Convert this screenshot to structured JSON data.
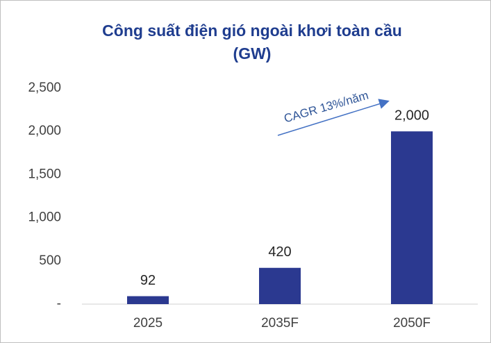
{
  "chart_data": {
    "type": "bar",
    "title": [
      "Công suất điện gió ngoài khơi toàn cầu",
      "(GW)"
    ],
    "categories": [
      "2025",
      "2035F",
      "2050F"
    ],
    "values": [
      92,
      420,
      2000
    ],
    "value_labels": [
      "92",
      "420",
      "2,000"
    ],
    "color": "#2b3990",
    "ylim": [
      0,
      2500
    ],
    "yticks": [
      {
        "value": 0,
        "label": "-"
      },
      500,
      {
        "value": 1000,
        "label": "1,000"
      },
      {
        "value": 1500,
        "label": "1,500"
      },
      {
        "value": 2000,
        "label": "2,000"
      },
      {
        "value": 2500,
        "label": "2,500"
      }
    ],
    "grid": false,
    "annotation": "CAGR 13%/năm"
  }
}
